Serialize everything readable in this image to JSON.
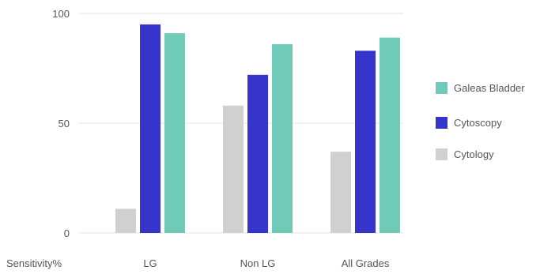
{
  "chart_data": {
    "type": "bar",
    "xlabel": "Sensitivity%",
    "categories": [
      "LG",
      "Non LG",
      "All Grades"
    ],
    "series": [
      {
        "name": "Cytology",
        "color": "#d0d0d0",
        "values": [
          11,
          58,
          37
        ]
      },
      {
        "name": "Cytoscopy",
        "color": "#3535cc",
        "values": [
          95,
          72,
          83
        ]
      },
      {
        "name": "Galeas Bladder",
        "color": "#6fcbb8",
        "values": [
          91,
          86,
          89
        ]
      }
    ],
    "legend_order": [
      "Galeas Bladder",
      "Cytoscopy",
      "Cytology"
    ],
    "legend_position": "right",
    "ylim": [
      0,
      100
    ],
    "yticks": [
      0,
      50,
      100
    ],
    "grid": true
  }
}
